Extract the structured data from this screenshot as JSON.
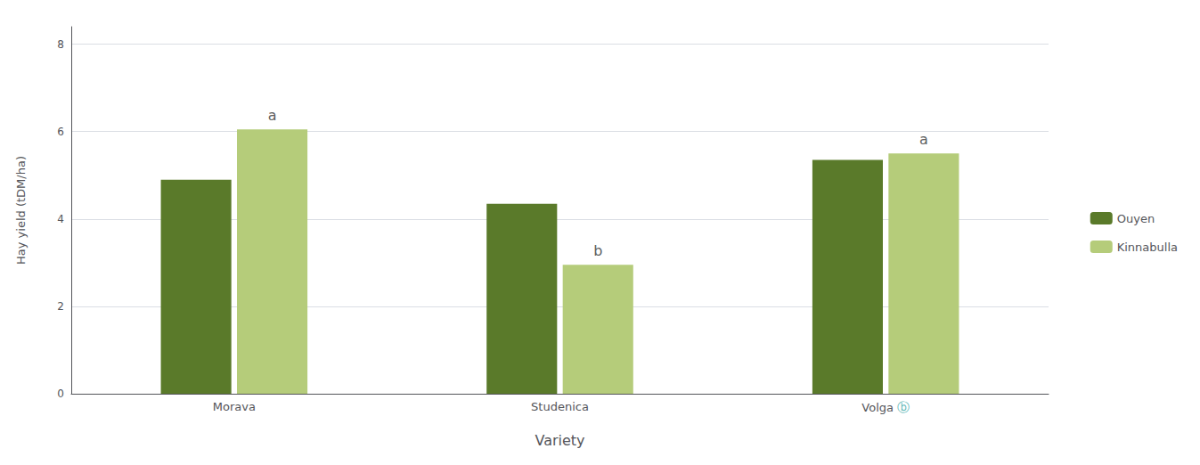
{
  "chart_data": {
    "type": "bar",
    "categories": [
      "Morava",
      "Studenica",
      "Volga"
    ],
    "series": [
      {
        "name": "Ouyen",
        "color": "#5a7a2a",
        "values": [
          4.9,
          4.35,
          5.35
        ]
      },
      {
        "name": "Kinnabulla",
        "color": "#b5cc7a",
        "values": [
          6.05,
          2.95,
          5.5
        ]
      }
    ],
    "xlabel": "Variety",
    "ylabel": "Hay yield (tDM/ha)",
    "ylim": [
      0,
      8.4
    ],
    "yticks": [
      0,
      2,
      4,
      6,
      8
    ],
    "grid": true,
    "legend": "right",
    "annotations": [
      {
        "text": "a",
        "series": "Kinnabulla",
        "category": "Morava"
      },
      {
        "text": "b",
        "series": "Kinnabulla",
        "category": "Studenica"
      },
      {
        "text": "a",
        "series": "Kinnabulla",
        "category": "Volga"
      },
      {
        "text": "ⓑ",
        "category": "Volga",
        "color": "#5ab5b5"
      }
    ]
  }
}
